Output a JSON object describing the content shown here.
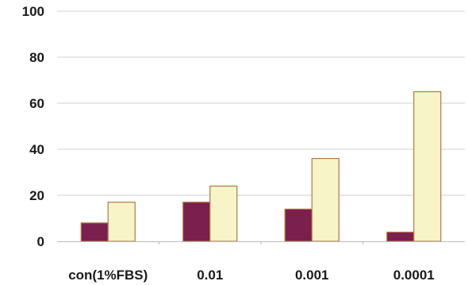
{
  "chart_data": {
    "type": "bar",
    "categories": [
      "con(1%FBS)",
      "0.01",
      "0.001",
      "0.0001"
    ],
    "series": [
      {
        "values": [
          8,
          17,
          14,
          4
        ],
        "color": "#7a1f4e"
      },
      {
        "values": [
          17,
          24,
          36,
          65
        ],
        "color": "#f7f4c8"
      }
    ],
    "ylim": [
      0,
      100
    ],
    "yticks": [
      "0",
      "20",
      "40",
      "60",
      "80",
      "100"
    ],
    "grid": true,
    "bar_outline_color": "#b07a40",
    "grid_color": "#d0d0d0"
  }
}
